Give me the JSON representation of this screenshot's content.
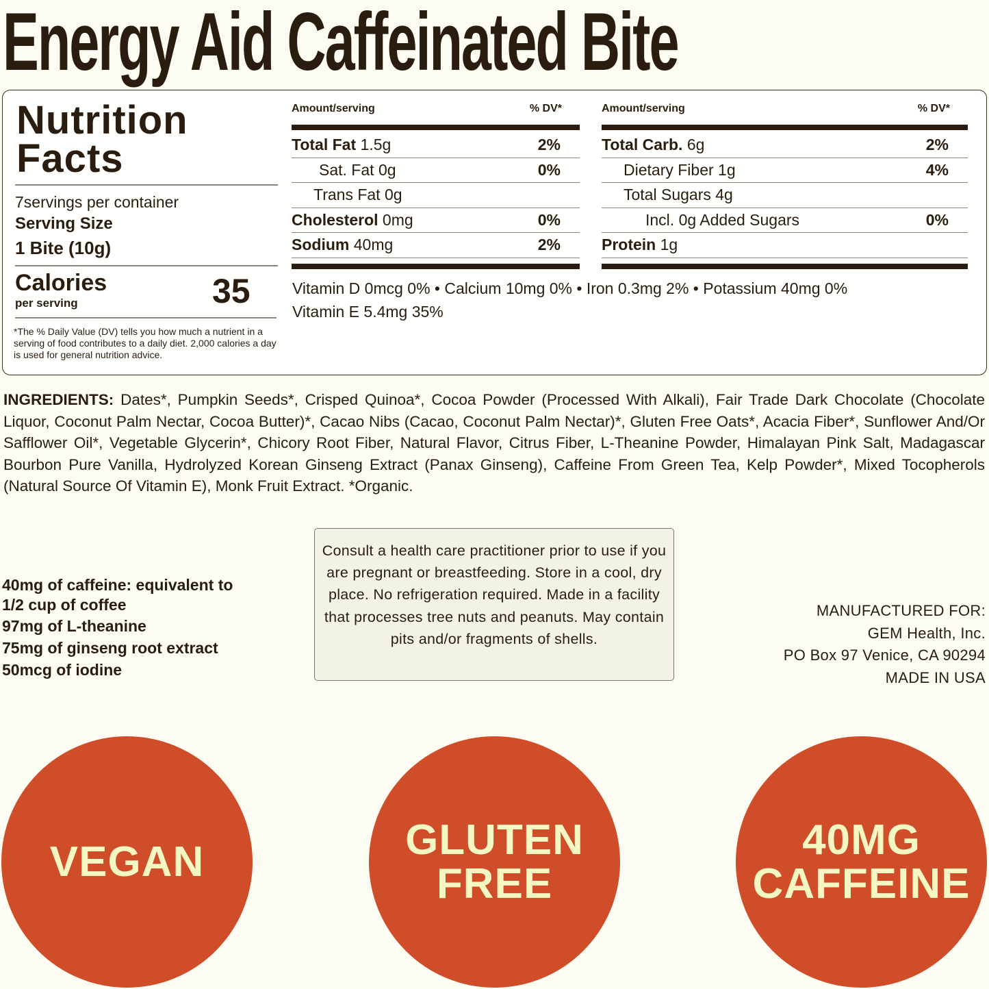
{
  "title": "Energy Aid Caffeinated Bite",
  "nutrition": {
    "heading_line1": "Nutrition",
    "heading_line2": "Facts",
    "servings_per_container": "7servings per container",
    "serving_size_label": "Serving Size",
    "serving_size_value": "1 Bite (10g)",
    "calories_label": "Calories",
    "per_serving": "per serving",
    "calories_value": "35",
    "footnote": "*The % Daily Value (DV) tells you how much a nutrient in a serving of food contributes to a daily diet. 2,000 calories a day is used for general nutrition advice.",
    "col_header_amount": "Amount/serving",
    "col_header_dv": "% DV*",
    "left_rows": [
      {
        "name": "Total Fat",
        "amount": "1.5g",
        "dv": "2%"
      },
      {
        "name": "Sat. Fat",
        "amount": "0g",
        "dv": "0%"
      },
      {
        "name": "Trans Fat",
        "amount": "0g",
        "dv": ""
      },
      {
        "name": "Cholesterol",
        "amount": "0mg",
        "dv": "0%"
      },
      {
        "name": "Sodium",
        "amount": "40mg",
        "dv": "2%"
      }
    ],
    "right_rows": [
      {
        "name": "Total Carb.",
        "amount": "6g",
        "dv": "2%"
      },
      {
        "name": "Dietary Fiber",
        "amount": "1g",
        "dv": "4%"
      },
      {
        "name": "Total Sugars",
        "amount": "4g",
        "dv": ""
      },
      {
        "name": "Incl. 0g Added Sugars",
        "amount": "",
        "dv": "0%"
      },
      {
        "name": "Protein",
        "amount": "1g",
        "dv": ""
      }
    ],
    "vitamins_line1": "Vitamin D 0mcg 0% • Calcium 10mg 0% • Iron 0.3mg 2% • Potassium 40mg 0%",
    "vitamins_line2": "Vitamin E 5.4mg 35%"
  },
  "ingredients": {
    "label": "INGREDIENTS:",
    "text": " Dates*, Pumpkin Seeds*, Crisped Quinoa*, Cocoa Powder (Processed With Alkali), Fair Trade Dark Chocolate (Chocolate Liquor, Coconut Palm Nectar, Cocoa Butter)*, Cacao Nibs (Cacao, Coconut Palm Nectar)*, Gluten Free Oats*, Acacia Fiber*, Sunflower And/Or Safflower Oil*, Vegetable Glycerin*, Chicory Root Fiber, Natural Flavor, Citrus Fiber, L-Theanine Powder, Himalayan Pink Salt, Madagascar Bourbon Pure Vanilla, Hydrolyzed Korean Ginseng Extract (Panax Ginseng), Caffeine From Green Tea, Kelp Powder*, Mixed Tocopherols (Natural Source Of Vitamin E), Monk Fruit Extract. *Organic."
  },
  "facts": [
    "40mg of caffeine: equivalent to 1/2 cup of coffee",
    "97mg of L-theanine",
    "75mg of ginseng root extract",
    "50mcg of iodine"
  ],
  "warning": "Consult a health care practitioner prior to use if you are pregnant or breastfeeding. Store in a cool, dry place. No refrigeration required. Made in a facility that processes tree nuts and peanuts. May contain pits and/or fragments of shells.",
  "manufacturer": [
    "MANUFACTURED FOR:",
    "GEM Health, Inc.",
    "PO Box 97 Venice, CA 90294",
    "MADE IN USA"
  ],
  "badges": [
    [
      "VEGAN"
    ],
    [
      "GLUTEN",
      "FREE"
    ],
    [
      "40MG",
      "CAFFEINE"
    ]
  ],
  "colors": {
    "text": "#2a1d10",
    "background": "#fdfcf2",
    "badge": "#d04d2a",
    "badge_text": "#f4f7c2"
  }
}
